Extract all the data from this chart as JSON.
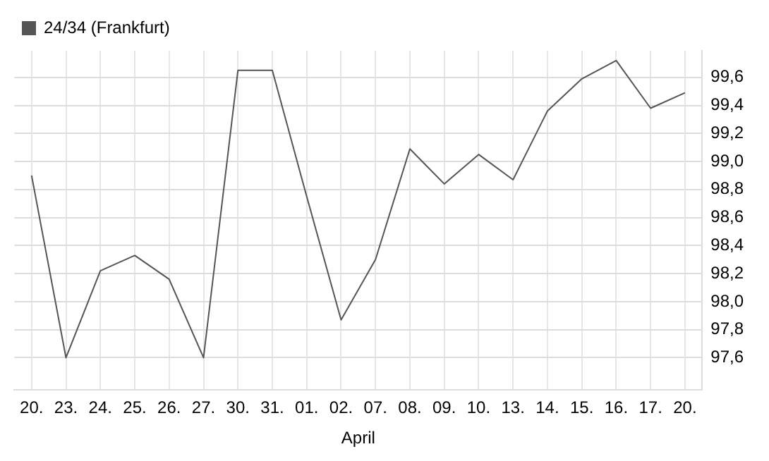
{
  "chart_data": {
    "type": "line",
    "categories": [
      "20.",
      "23.",
      "24.",
      "25.",
      "26.",
      "27.",
      "30.",
      "31.",
      "01.",
      "02.",
      "07.",
      "08.",
      "09.",
      "10.",
      "13.",
      "14.",
      "15.",
      "16.",
      "17.",
      "20."
    ],
    "series": [
      {
        "name": "24/34 (Frankfurt)",
        "color": "#555555",
        "values": [
          98.9,
          97.6,
          98.22,
          98.33,
          98.16,
          97.6,
          99.65,
          99.65,
          98.75,
          97.87,
          98.3,
          99.09,
          98.84,
          99.05,
          98.87,
          99.36,
          99.59,
          99.72,
          99.38,
          99.49
        ]
      }
    ],
    "ylim": [
      97.37,
      99.79
    ],
    "yticks": [
      {
        "value": 97.6,
        "label": "97,6"
      },
      {
        "value": 97.8,
        "label": "97,8"
      },
      {
        "value": 98.0,
        "label": "98,0"
      },
      {
        "value": 98.2,
        "label": "98,2"
      },
      {
        "value": 98.4,
        "label": "98,4"
      },
      {
        "value": 98.6,
        "label": "98,6"
      },
      {
        "value": 98.8,
        "label": "98,8"
      },
      {
        "value": 99.0,
        "label": "99,0"
      },
      {
        "value": 99.2,
        "label": "99,2"
      },
      {
        "value": 99.4,
        "label": "99,4"
      },
      {
        "value": 99.6,
        "label": "99,6"
      }
    ],
    "annotations": [
      "April"
    ],
    "grid": true,
    "legend": "top left",
    "marker": "none",
    "line_style": "solid"
  }
}
